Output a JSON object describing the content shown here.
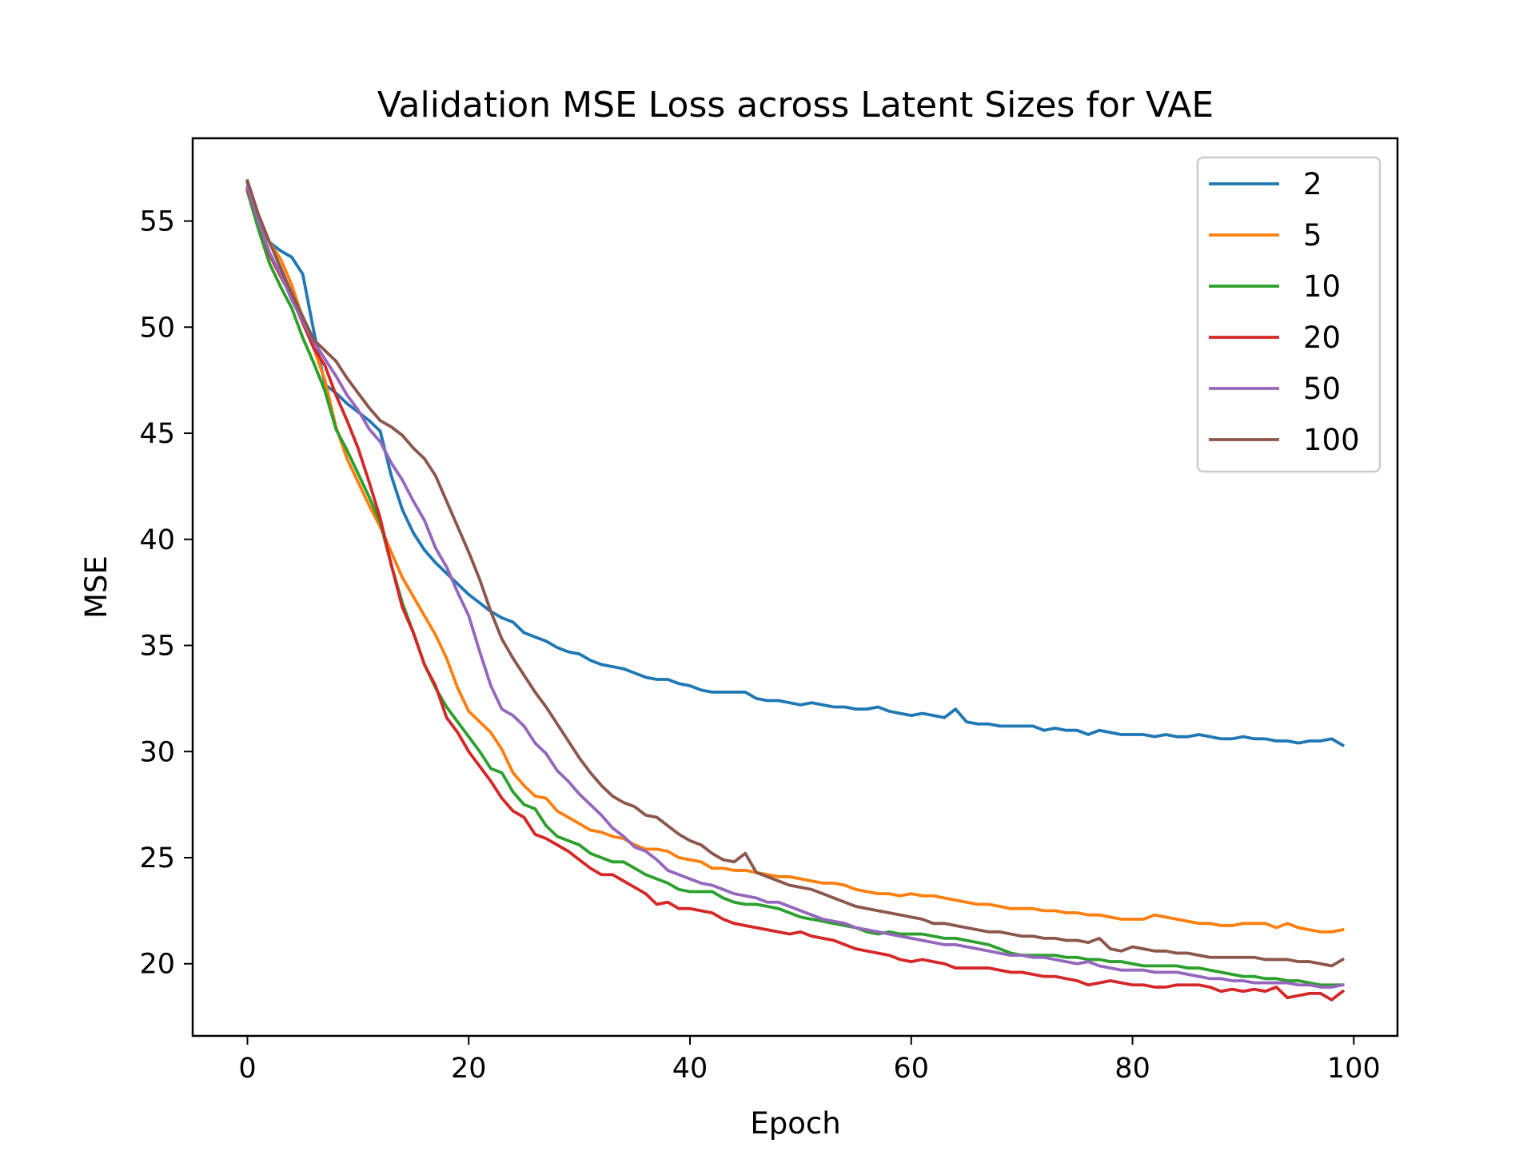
{
  "chart_data": {
    "type": "line",
    "title": "Validation MSE Loss across Latent Sizes for VAE",
    "xlabel": "Epoch",
    "ylabel": "MSE",
    "xlim": [
      -4.95,
      103.95
    ],
    "ylim": [
      16.6,
      58.9
    ],
    "xticks": [
      0,
      20,
      40,
      60,
      80,
      100
    ],
    "yticks": [
      20,
      25,
      30,
      35,
      40,
      45,
      50,
      55
    ],
    "grid": false,
    "legend_position": "top-right",
    "colors": {
      "2": "#1f77b4",
      "5": "#ff7f0e",
      "10": "#2ca02c",
      "20": "#d62728",
      "50": "#9467bd",
      "100": "#8c564b"
    },
    "series": [
      {
        "name": "2",
        "color": "#1f77b4",
        "x": [
          0,
          1,
          2,
          3,
          4,
          5,
          6,
          7,
          8,
          9,
          10,
          11,
          12,
          13,
          14,
          15,
          16,
          17,
          18,
          19,
          20,
          21,
          22,
          23,
          24,
          25,
          26,
          27,
          28,
          29,
          30,
          31,
          32,
          33,
          34,
          35,
          36,
          37,
          38,
          39,
          40,
          41,
          42,
          43,
          44,
          45,
          46,
          47,
          48,
          49,
          50,
          51,
          52,
          53,
          54,
          55,
          56,
          57,
          58,
          59,
          60,
          61,
          62,
          63,
          64,
          65,
          66,
          67,
          68,
          69,
          70,
          71,
          72,
          73,
          74,
          75,
          76,
          77,
          78,
          79,
          80,
          81,
          82,
          83,
          84,
          85,
          86,
          87,
          88,
          89,
          90,
          91,
          92,
          93,
          94,
          95,
          96,
          97,
          98,
          99
        ],
        "values": [
          56.8,
          55.1,
          54.0,
          53.6,
          53.3,
          52.5,
          49.8,
          47.3,
          46.9,
          46.4,
          46.0,
          45.6,
          45.1,
          43.0,
          41.4,
          40.3,
          39.5,
          38.9,
          38.4,
          37.9,
          37.4,
          37.0,
          36.6,
          36.3,
          36.1,
          35.6,
          35.4,
          35.2,
          34.9,
          34.7,
          34.6,
          34.3,
          34.1,
          34.0,
          33.9,
          33.7,
          33.5,
          33.4,
          33.4,
          33.2,
          33.1,
          32.9,
          32.8,
          32.8,
          32.8,
          32.8,
          32.5,
          32.4,
          32.4,
          32.3,
          32.2,
          32.3,
          32.2,
          32.1,
          32.1,
          32.0,
          32.0,
          32.1,
          31.9,
          31.8,
          31.7,
          31.8,
          31.7,
          31.6,
          32.0,
          31.4,
          31.3,
          31.3,
          31.2,
          31.2,
          31.2,
          31.2,
          31.0,
          31.1,
          31.0,
          31.0,
          30.8,
          31.0,
          30.9,
          30.8,
          30.8,
          30.8,
          30.7,
          30.8,
          30.7,
          30.7,
          30.8,
          30.7,
          30.6,
          30.6,
          30.7,
          30.6,
          30.6,
          30.5,
          30.5,
          30.4,
          30.5,
          30.5,
          30.6,
          30.3
        ]
      },
      {
        "name": "5",
        "color": "#ff7f0e",
        "x": [
          0,
          1,
          2,
          3,
          4,
          5,
          6,
          7,
          8,
          9,
          10,
          11,
          12,
          13,
          14,
          15,
          16,
          17,
          18,
          19,
          20,
          21,
          22,
          23,
          24,
          25,
          26,
          27,
          28,
          29,
          30,
          31,
          32,
          33,
          34,
          35,
          36,
          37,
          38,
          39,
          40,
          41,
          42,
          43,
          44,
          45,
          46,
          47,
          48,
          49,
          50,
          51,
          52,
          53,
          54,
          55,
          56,
          57,
          58,
          59,
          60,
          61,
          62,
          63,
          64,
          65,
          66,
          67,
          68,
          69,
          70,
          71,
          72,
          73,
          74,
          75,
          76,
          77,
          78,
          79,
          80,
          81,
          82,
          83,
          84,
          85,
          86,
          87,
          88,
          89,
          90,
          91,
          92,
          93,
          94,
          95,
          96,
          97,
          98,
          99
        ],
        "values": [
          56.5,
          55.0,
          54.0,
          53.2,
          52.0,
          50.4,
          49.0,
          47.5,
          45.3,
          43.8,
          42.7,
          41.6,
          40.6,
          39.4,
          38.2,
          37.3,
          36.4,
          35.5,
          34.4,
          33.0,
          31.9,
          31.4,
          30.9,
          30.1,
          29.0,
          28.4,
          27.9,
          27.8,
          27.2,
          26.9,
          26.6,
          26.3,
          26.2,
          26.0,
          25.9,
          25.6,
          25.4,
          25.4,
          25.3,
          25.0,
          24.9,
          24.8,
          24.5,
          24.5,
          24.4,
          24.4,
          24.3,
          24.2,
          24.1,
          24.1,
          24.0,
          23.9,
          23.8,
          23.8,
          23.7,
          23.5,
          23.4,
          23.3,
          23.3,
          23.2,
          23.3,
          23.2,
          23.2,
          23.1,
          23.0,
          22.9,
          22.8,
          22.8,
          22.7,
          22.6,
          22.6,
          22.6,
          22.5,
          22.5,
          22.4,
          22.4,
          22.3,
          22.3,
          22.2,
          22.1,
          22.1,
          22.1,
          22.3,
          22.2,
          22.1,
          22.0,
          21.9,
          21.9,
          21.8,
          21.8,
          21.9,
          21.9,
          21.9,
          21.7,
          21.9,
          21.7,
          21.6,
          21.5,
          21.5,
          21.6
        ]
      },
      {
        "name": "10",
        "color": "#2ca02c",
        "x": [
          0,
          1,
          2,
          3,
          4,
          5,
          6,
          7,
          8,
          9,
          10,
          11,
          12,
          13,
          14,
          15,
          16,
          17,
          18,
          19,
          20,
          21,
          22,
          23,
          24,
          25,
          26,
          27,
          28,
          29,
          30,
          31,
          32,
          33,
          34,
          35,
          36,
          37,
          38,
          39,
          40,
          41,
          42,
          43,
          44,
          45,
          46,
          47,
          48,
          49,
          50,
          51,
          52,
          53,
          54,
          55,
          56,
          57,
          58,
          59,
          60,
          61,
          62,
          63,
          64,
          65,
          66,
          67,
          68,
          69,
          70,
          71,
          72,
          73,
          74,
          75,
          76,
          77,
          78,
          79,
          80,
          81,
          82,
          83,
          84,
          85,
          86,
          87,
          88,
          89,
          90,
          91,
          92,
          93,
          94,
          95,
          96,
          97,
          98,
          99
        ],
        "values": [
          56.4,
          54.6,
          53.0,
          51.9,
          50.9,
          49.5,
          48.3,
          47.0,
          45.2,
          44.2,
          43.1,
          42.0,
          40.8,
          38.8,
          37.0,
          35.6,
          34.1,
          33.0,
          32.1,
          31.4,
          30.7,
          30.0,
          29.2,
          29.0,
          28.1,
          27.5,
          27.3,
          26.5,
          26.0,
          25.8,
          25.6,
          25.2,
          25.0,
          24.8,
          24.8,
          24.5,
          24.2,
          24.0,
          23.8,
          23.5,
          23.4,
          23.4,
          23.4,
          23.1,
          22.9,
          22.8,
          22.8,
          22.7,
          22.6,
          22.4,
          22.2,
          22.1,
          22.0,
          21.9,
          21.8,
          21.7,
          21.5,
          21.4,
          21.5,
          21.4,
          21.4,
          21.4,
          21.3,
          21.2,
          21.2,
          21.1,
          21.0,
          20.9,
          20.7,
          20.5,
          20.4,
          20.4,
          20.4,
          20.4,
          20.3,
          20.3,
          20.2,
          20.2,
          20.1,
          20.1,
          20.0,
          19.9,
          19.9,
          19.9,
          19.9,
          19.8,
          19.8,
          19.7,
          19.6,
          19.5,
          19.4,
          19.4,
          19.3,
          19.3,
          19.2,
          19.2,
          19.1,
          19.0,
          19.0,
          19.0
        ]
      },
      {
        "name": "20",
        "color": "#d62728",
        "x": [
          0,
          1,
          2,
          3,
          4,
          5,
          6,
          7,
          8,
          9,
          10,
          11,
          12,
          13,
          14,
          15,
          16,
          17,
          18,
          19,
          20,
          21,
          22,
          23,
          24,
          25,
          26,
          27,
          28,
          29,
          30,
          31,
          32,
          33,
          34,
          35,
          36,
          37,
          38,
          39,
          40,
          41,
          42,
          43,
          44,
          45,
          46,
          47,
          48,
          49,
          50,
          51,
          52,
          53,
          54,
          55,
          56,
          57,
          58,
          59,
          60,
          61,
          62,
          63,
          64,
          65,
          66,
          67,
          68,
          69,
          70,
          71,
          72,
          73,
          74,
          75,
          76,
          77,
          78,
          79,
          80,
          81,
          82,
          83,
          84,
          85,
          86,
          87,
          88,
          89,
          90,
          91,
          92,
          93,
          94,
          95,
          96,
          97,
          98,
          99
        ],
        "values": [
          56.5,
          55.0,
          53.4,
          52.4,
          51.4,
          50.2,
          49.0,
          48.2,
          46.8,
          45.6,
          44.3,
          42.7,
          41.0,
          38.8,
          36.8,
          35.6,
          34.1,
          33.1,
          31.6,
          30.9,
          30.0,
          29.3,
          28.6,
          27.8,
          27.2,
          26.9,
          26.1,
          25.9,
          25.6,
          25.3,
          24.9,
          24.5,
          24.2,
          24.2,
          23.9,
          23.6,
          23.3,
          22.8,
          22.9,
          22.6,
          22.6,
          22.5,
          22.4,
          22.1,
          21.9,
          21.8,
          21.7,
          21.6,
          21.5,
          21.4,
          21.5,
          21.3,
          21.2,
          21.1,
          20.9,
          20.7,
          20.6,
          20.5,
          20.4,
          20.2,
          20.1,
          20.2,
          20.1,
          20.0,
          19.8,
          19.8,
          19.8,
          19.8,
          19.7,
          19.6,
          19.6,
          19.5,
          19.4,
          19.4,
          19.3,
          19.2,
          19.0,
          19.1,
          19.2,
          19.1,
          19.0,
          19.0,
          18.9,
          18.9,
          19.0,
          19.0,
          19.0,
          18.9,
          18.7,
          18.8,
          18.7,
          18.8,
          18.7,
          18.9,
          18.4,
          18.5,
          18.6,
          18.6,
          18.3,
          18.7
        ]
      },
      {
        "name": "50",
        "color": "#9467bd",
        "x": [
          0,
          1,
          2,
          3,
          4,
          5,
          6,
          7,
          8,
          9,
          10,
          11,
          12,
          13,
          14,
          15,
          16,
          17,
          18,
          19,
          20,
          21,
          22,
          23,
          24,
          25,
          26,
          27,
          28,
          29,
          30,
          31,
          32,
          33,
          34,
          35,
          36,
          37,
          38,
          39,
          40,
          41,
          42,
          43,
          44,
          45,
          46,
          47,
          48,
          49,
          50,
          51,
          52,
          53,
          54,
          55,
          56,
          57,
          58,
          59,
          60,
          61,
          62,
          63,
          64,
          65,
          66,
          67,
          68,
          69,
          70,
          71,
          72,
          73,
          74,
          75,
          76,
          77,
          78,
          79,
          80,
          81,
          82,
          83,
          84,
          85,
          86,
          87,
          88,
          89,
          90,
          91,
          92,
          93,
          94,
          95,
          96,
          97,
          98,
          99
        ],
        "values": [
          56.6,
          55.0,
          53.5,
          52.5,
          51.3,
          50.3,
          49.3,
          48.5,
          47.7,
          46.8,
          46.1,
          45.2,
          44.6,
          43.6,
          42.8,
          41.8,
          40.9,
          39.6,
          38.7,
          37.5,
          36.4,
          34.7,
          33.1,
          32.0,
          31.7,
          31.2,
          30.4,
          29.9,
          29.1,
          28.6,
          28.0,
          27.5,
          27.0,
          26.4,
          26.0,
          25.5,
          25.3,
          24.9,
          24.4,
          24.2,
          24.0,
          23.8,
          23.7,
          23.5,
          23.3,
          23.2,
          23.1,
          22.9,
          22.9,
          22.7,
          22.5,
          22.3,
          22.1,
          22.0,
          21.9,
          21.7,
          21.6,
          21.5,
          21.4,
          21.3,
          21.2,
          21.1,
          21.0,
          20.9,
          20.9,
          20.8,
          20.7,
          20.6,
          20.5,
          20.4,
          20.4,
          20.3,
          20.3,
          20.2,
          20.1,
          20.0,
          20.1,
          19.9,
          19.8,
          19.7,
          19.7,
          19.7,
          19.6,
          19.6,
          19.6,
          19.5,
          19.4,
          19.3,
          19.3,
          19.2,
          19.2,
          19.1,
          19.1,
          19.1,
          19.1,
          19.0,
          19.0,
          18.9,
          18.9,
          19.0
        ]
      },
      {
        "name": "100",
        "color": "#8c564b",
        "x": [
          0,
          1,
          2,
          3,
          4,
          5,
          6,
          7,
          8,
          9,
          10,
          11,
          12,
          13,
          14,
          15,
          16,
          17,
          18,
          19,
          20,
          21,
          22,
          23,
          24,
          25,
          26,
          27,
          28,
          29,
          30,
          31,
          32,
          33,
          34,
          35,
          36,
          37,
          38,
          39,
          40,
          41,
          42,
          43,
          44,
          45,
          46,
          47,
          48,
          49,
          50,
          51,
          52,
          53,
          54,
          55,
          56,
          57,
          58,
          59,
          60,
          61,
          62,
          63,
          64,
          65,
          66,
          67,
          68,
          69,
          70,
          71,
          72,
          73,
          74,
          75,
          76,
          77,
          78,
          79,
          80,
          81,
          82,
          83,
          84,
          85,
          86,
          87,
          88,
          89,
          90,
          91,
          92,
          93,
          94,
          95,
          96,
          97,
          98,
          99
        ],
        "values": [
          56.9,
          55.3,
          54.0,
          52.8,
          51.6,
          50.5,
          49.4,
          48.9,
          48.4,
          47.6,
          46.9,
          46.2,
          45.6,
          45.3,
          44.9,
          44.3,
          43.8,
          43.0,
          41.8,
          40.6,
          39.4,
          38.1,
          36.6,
          35.3,
          34.4,
          33.6,
          32.8,
          32.1,
          31.3,
          30.5,
          29.7,
          29.0,
          28.4,
          27.9,
          27.6,
          27.4,
          27.0,
          26.9,
          26.5,
          26.1,
          25.8,
          25.6,
          25.2,
          24.9,
          24.8,
          25.2,
          24.3,
          24.1,
          23.9,
          23.7,
          23.6,
          23.5,
          23.3,
          23.1,
          22.9,
          22.7,
          22.6,
          22.5,
          22.4,
          22.3,
          22.2,
          22.1,
          21.9,
          21.9,
          21.8,
          21.7,
          21.6,
          21.5,
          21.5,
          21.4,
          21.3,
          21.3,
          21.2,
          21.2,
          21.1,
          21.1,
          21.0,
          21.2,
          20.7,
          20.6,
          20.8,
          20.7,
          20.6,
          20.6,
          20.5,
          20.5,
          20.4,
          20.3,
          20.3,
          20.3,
          20.3,
          20.3,
          20.2,
          20.2,
          20.2,
          20.1,
          20.1,
          20.0,
          19.9,
          20.2
        ]
      }
    ]
  }
}
